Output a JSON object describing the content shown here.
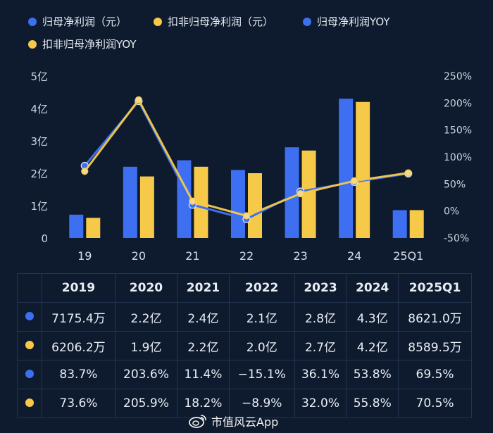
{
  "legend": [
    {
      "label": "归母净利润（元）",
      "color": "#3d6ff0"
    },
    {
      "label": "扣非归母净利润（元）",
      "color": "#f7c948"
    },
    {
      "label": "归母净利润YOY",
      "color": "#3d6ff0"
    },
    {
      "label": "扣非归母净利润YOY",
      "color": "#f7c948"
    }
  ],
  "chart_data": {
    "type": "bar",
    "categories": [
      "19",
      "20",
      "21",
      "22",
      "23",
      "24",
      "25Q1"
    ],
    "series": [
      {
        "name": "归母净利润（元）",
        "kind": "bar",
        "axis": "left",
        "color": "#3d6ff0",
        "values": [
          0.72,
          2.2,
          2.4,
          2.1,
          2.8,
          4.3,
          0.86
        ]
      },
      {
        "name": "扣非归母净利润（元）",
        "kind": "bar",
        "axis": "left",
        "color": "#f7c948",
        "values": [
          0.62,
          1.9,
          2.2,
          2.0,
          2.7,
          4.2,
          0.86
        ]
      },
      {
        "name": "归母净利润YOY",
        "kind": "line",
        "axis": "right",
        "color": "#3d6ff0",
        "values": [
          83.7,
          203.6,
          11.4,
          -15.1,
          36.1,
          53.8,
          69.5
        ]
      },
      {
        "name": "扣非归母净利润YOY",
        "kind": "line",
        "axis": "right",
        "color": "#f7c948",
        "values": [
          73.6,
          205.9,
          18.2,
          -8.9,
          32.0,
          55.8,
          70.5
        ]
      }
    ],
    "ylim_left": [
      0,
      5
    ],
    "ylim_right": [
      -50,
      250
    ],
    "left_ticks": [
      "0",
      "1亿",
      "2亿",
      "3亿",
      "4亿",
      "5亿"
    ],
    "right_ticks": [
      "-50%",
      "0%",
      "50%",
      "100%",
      "150%",
      "200%",
      "250%"
    ],
    "legend_position": "top",
    "grid": false
  },
  "table": {
    "headers": [
      "2019",
      "2020",
      "2021",
      "2022",
      "2023",
      "2024",
      "2025Q1"
    ],
    "rows": [
      {
        "color": "#3d6ff0",
        "cells": [
          "7175.4万",
          "2.2亿",
          "2.4亿",
          "2.1亿",
          "2.8亿",
          "4.3亿",
          "8621.0万"
        ]
      },
      {
        "color": "#f7c948",
        "cells": [
          "6206.2万",
          "1.9亿",
          "2.2亿",
          "2.0亿",
          "2.7亿",
          "4.2亿",
          "8589.5万"
        ]
      },
      {
        "color": "#3d6ff0",
        "cells": [
          "83.7%",
          "203.6%",
          "11.4%",
          "−15.1%",
          "36.1%",
          "53.8%",
          "69.5%"
        ]
      },
      {
        "color": "#f7c948",
        "cells": [
          "73.6%",
          "205.9%",
          "18.2%",
          "−8.9%",
          "32.0%",
          "55.8%",
          "70.5%"
        ]
      }
    ]
  },
  "watermark": {
    "text": "市值风云App"
  }
}
